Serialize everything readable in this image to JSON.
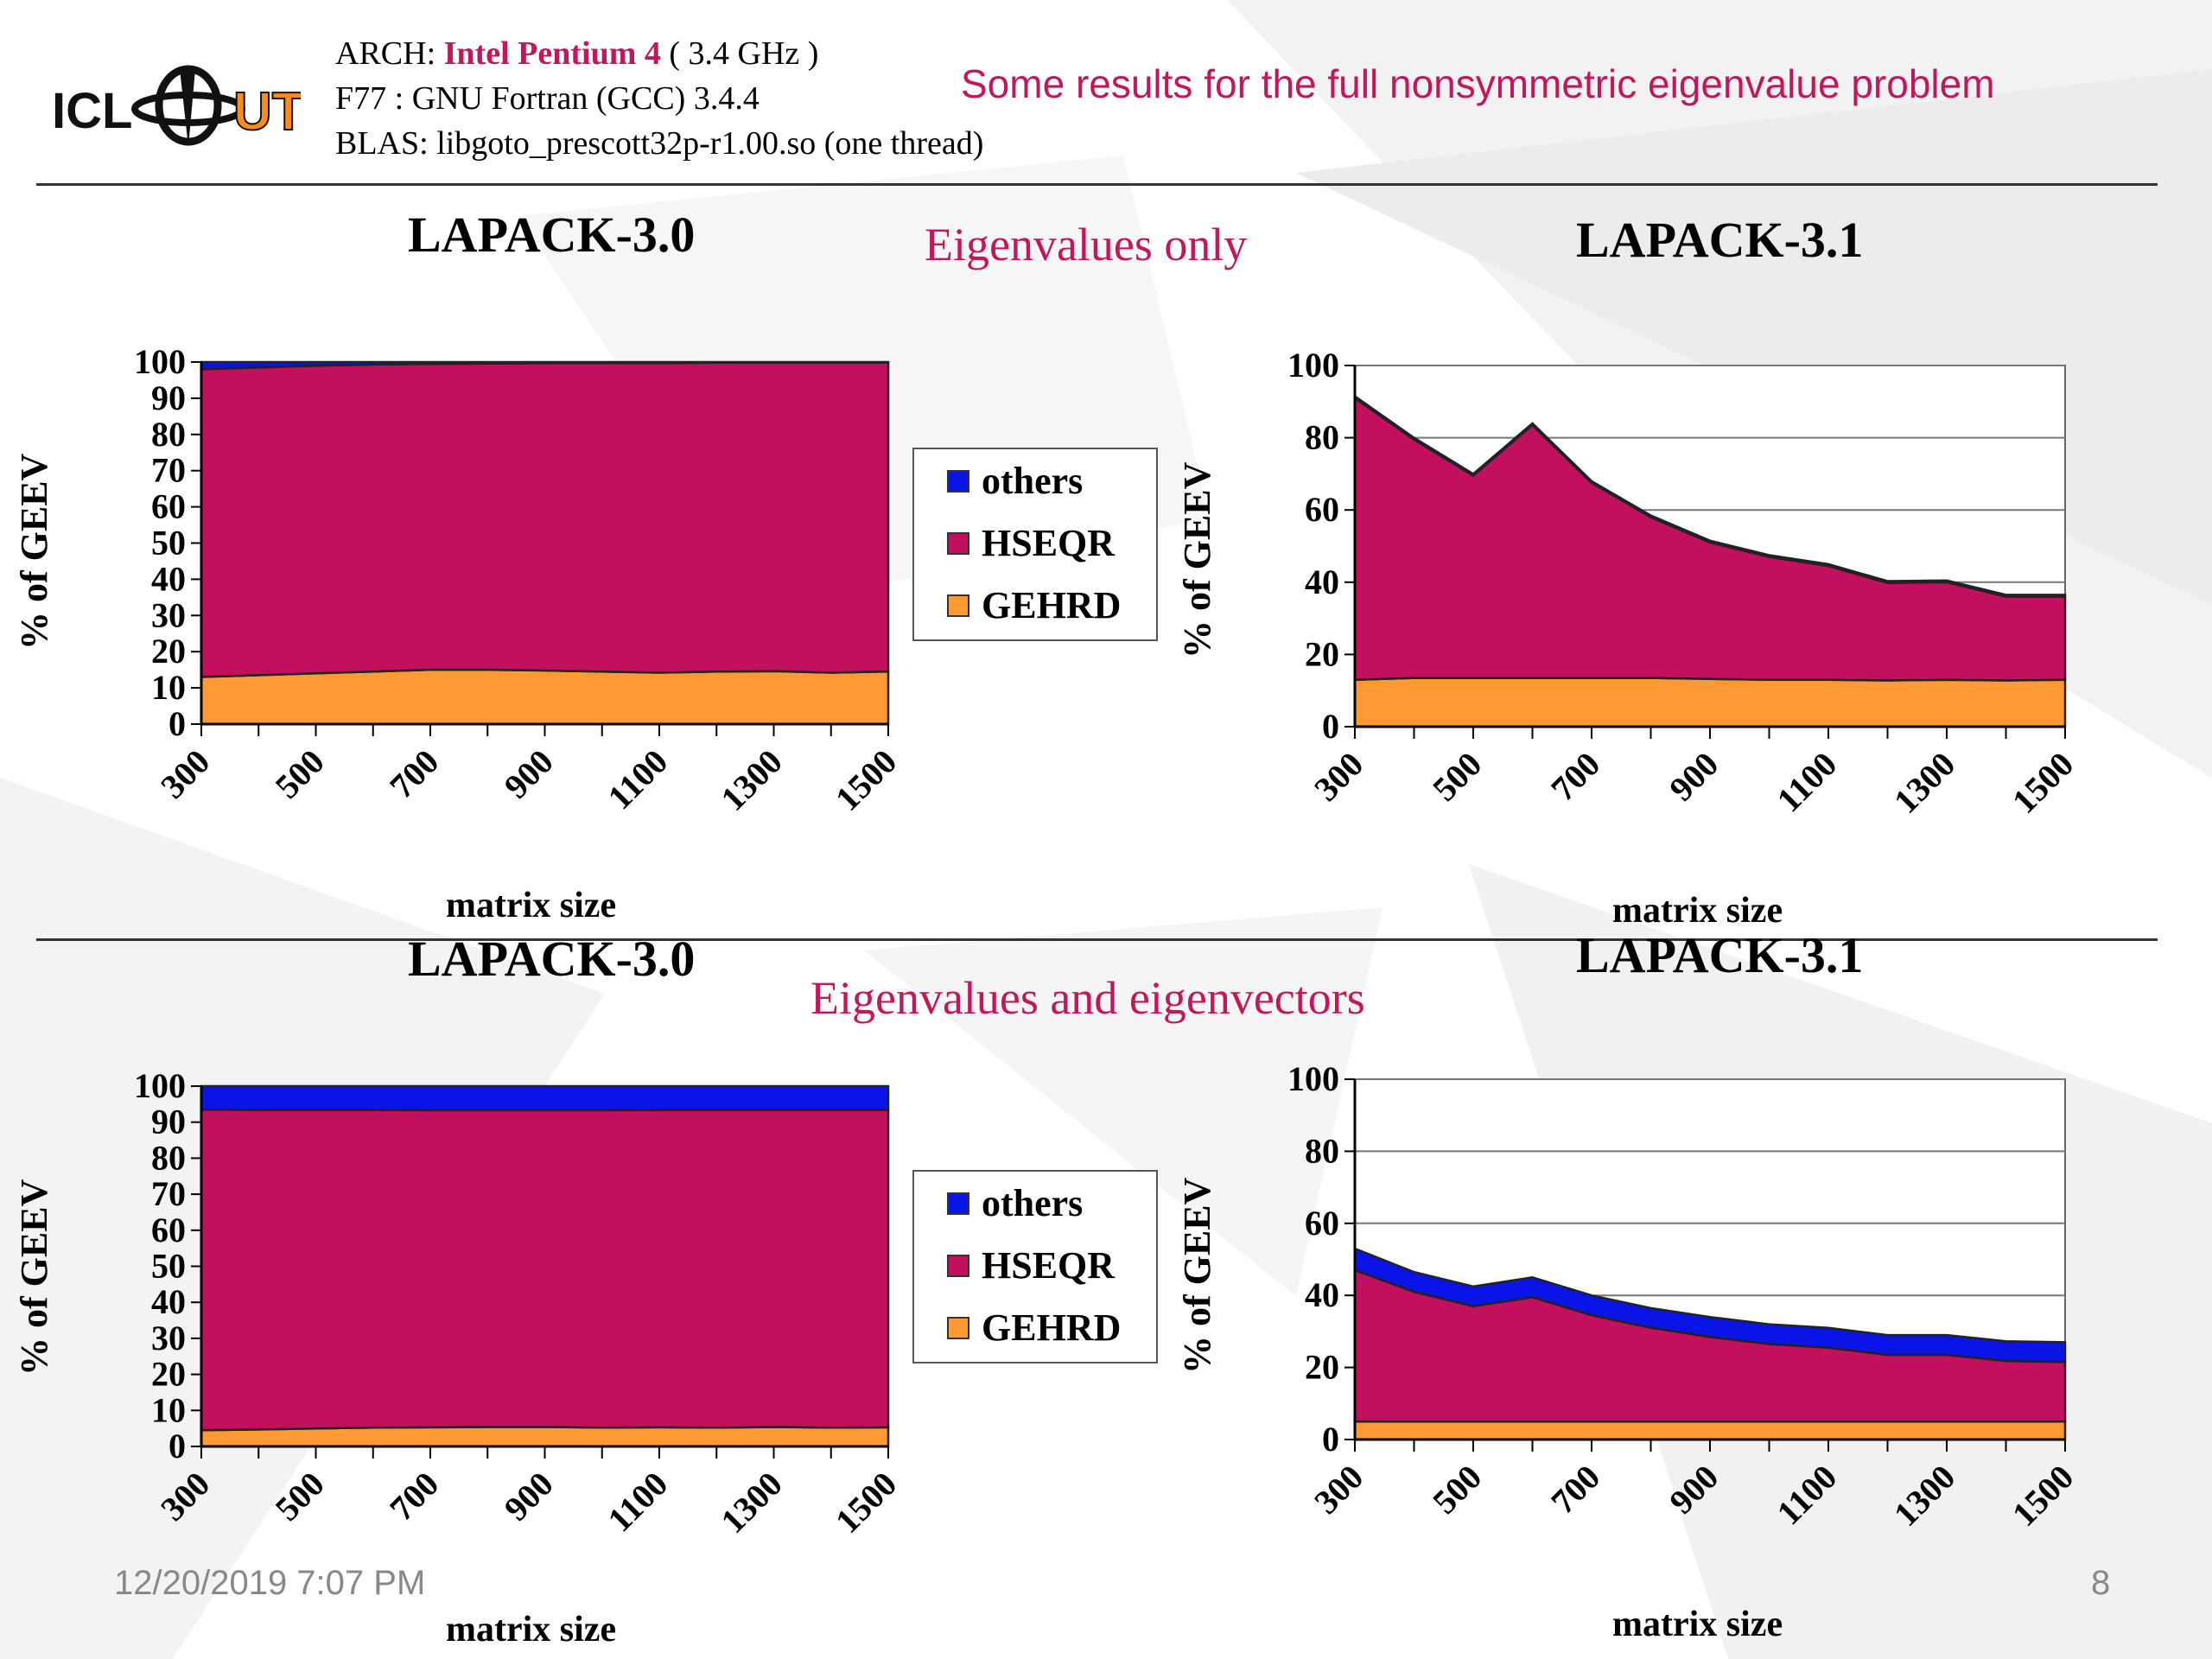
{
  "header": {
    "arch_prefix": "ARCH: ",
    "arch_cpu": "Intel Pentium 4",
    "arch_suffix": " ( 3.4 GHz )",
    "compiler": "F77 : GNU Fortran (GCC) 3.4.4",
    "blas": "BLAS: libgoto_prescott32p-r1.00.so (one thread)",
    "slide_title": "Some results for the full nonsymmetric eigenvalue problem",
    "logo_text": "ICL UT"
  },
  "sections": {
    "top": "Eigenvalues only",
    "bottom": "Eigenvalues and eigenvectors"
  },
  "legend": {
    "others": "others",
    "hseqr": "HSEQR",
    "gehrd": "GEHRD"
  },
  "colors": {
    "others": "#0a14e6",
    "hseqr": "#c2105e",
    "gehrd": "#ff9933",
    "accent": "#c2185b"
  },
  "footer": {
    "date": "12/20/2019 7:07 PM",
    "page": "8"
  },
  "chart_data": [
    {
      "id": "c1",
      "type": "area",
      "stacked": true,
      "title": "LAPACK-3.0",
      "xlabel": "matrix size",
      "ylabel": "% of GEEV",
      "x": [
        300,
        400,
        500,
        600,
        700,
        800,
        900,
        1000,
        1100,
        1200,
        1300,
        1400,
        1500
      ],
      "xticks": [
        "300",
        "500",
        "700",
        "900",
        "1100",
        "1300",
        "1500"
      ],
      "yticks": [
        0,
        10,
        20,
        30,
        40,
        50,
        60,
        70,
        80,
        90,
        100
      ],
      "ylim": [
        0,
        100
      ],
      "grid": false,
      "legend_position": "right",
      "series": [
        {
          "name": "GEHRD",
          "values": [
            13,
            13.5,
            14,
            14.5,
            15,
            15,
            14.8,
            14.5,
            14.2,
            14.5,
            14.6,
            14.2,
            14.5
          ]
        },
        {
          "name": "HSEQR",
          "values": [
            85,
            85,
            85,
            84.8,
            84.5,
            84.6,
            84.9,
            85.2,
            85.5,
            85.3,
            85.2,
            85.6,
            85.3
          ]
        },
        {
          "name": "others",
          "values": [
            2,
            1.5,
            1,
            0.7,
            0.5,
            0.4,
            0.3,
            0.3,
            0.3,
            0.2,
            0.2,
            0.2,
            0.2
          ]
        }
      ]
    },
    {
      "id": "c2",
      "type": "area",
      "stacked": true,
      "title": "LAPACK-3.1",
      "xlabel": "matrix size",
      "ylabel": "% of GEEV",
      "x": [
        300,
        400,
        500,
        600,
        700,
        800,
        900,
        1000,
        1100,
        1200,
        1300,
        1400,
        1500
      ],
      "xticks": [
        "300",
        "500",
        "700",
        "900",
        "1100",
        "1300",
        "1500"
      ],
      "yticks": [
        0,
        20,
        40,
        60,
        80,
        100
      ],
      "ylim": [
        0,
        100
      ],
      "grid": true,
      "legend_position": "none",
      "series": [
        {
          "name": "GEHRD",
          "values": [
            13,
            13.5,
            13.5,
            13.5,
            13.5,
            13.5,
            13.2,
            13,
            13,
            12.8,
            13,
            12.8,
            13
          ]
        },
        {
          "name": "HSEQR",
          "values": [
            78,
            66,
            56,
            70,
            54,
            44.5,
            37.8,
            34,
            31.5,
            27,
            27,
            23.2,
            23
          ]
        },
        {
          "name": "others",
          "values": [
            0.5,
            0.5,
            0.5,
            0.5,
            0.5,
            0.5,
            0.5,
            0.5,
            0.5,
            0.5,
            0.5,
            0.5,
            0.5
          ]
        }
      ]
    },
    {
      "id": "c3",
      "type": "area",
      "stacked": true,
      "title": "LAPACK-3.0",
      "xlabel": "matrix size",
      "ylabel": "% of GEEV",
      "x": [
        300,
        400,
        500,
        600,
        700,
        800,
        900,
        1000,
        1100,
        1200,
        1300,
        1400,
        1500
      ],
      "xticks": [
        "300",
        "500",
        "700",
        "900",
        "1100",
        "1300",
        "1500"
      ],
      "yticks": [
        0,
        10,
        20,
        30,
        40,
        50,
        60,
        70,
        80,
        90,
        100
      ],
      "ylim": [
        0,
        100
      ],
      "grid": false,
      "legend_position": "right",
      "series": [
        {
          "name": "GEHRD",
          "values": [
            4.5,
            4.7,
            5,
            5.2,
            5.3,
            5.4,
            5.4,
            5.2,
            5.3,
            5.2,
            5.4,
            5.2,
            5.3
          ]
        },
        {
          "name": "HSEQR",
          "values": [
            89,
            88.7,
            88.4,
            88.2,
            88,
            87.9,
            87.9,
            88.1,
            88.1,
            88.2,
            88,
            88.2,
            88.1
          ]
        },
        {
          "name": "others",
          "values": [
            6.5,
            6.6,
            6.6,
            6.6,
            6.7,
            6.7,
            6.7,
            6.7,
            6.6,
            6.6,
            6.6,
            6.6,
            6.6
          ]
        }
      ]
    },
    {
      "id": "c4",
      "type": "area",
      "stacked": true,
      "title": "LAPACK-3.1",
      "xlabel": "matrix size",
      "ylabel": "% of GEEV",
      "x": [
        300,
        400,
        500,
        600,
        700,
        800,
        900,
        1000,
        1100,
        1200,
        1300,
        1400,
        1500
      ],
      "xticks": [
        "300",
        "500",
        "700",
        "900",
        "1100",
        "1300",
        "1500"
      ],
      "yticks": [
        0,
        20,
        40,
        60,
        80,
        100
      ],
      "ylim": [
        0,
        100
      ],
      "grid": true,
      "legend_position": "none",
      "series": [
        {
          "name": "GEHRD",
          "values": [
            5,
            5,
            5,
            5,
            5,
            5,
            5,
            5,
            5,
            5,
            5,
            5,
            5
          ]
        },
        {
          "name": "HSEQR",
          "values": [
            42,
            36,
            32,
            34.5,
            29.5,
            26,
            23.5,
            21.5,
            20.5,
            18.5,
            18.5,
            16.8,
            16.5
          ]
        },
        {
          "name": "others",
          "values": [
            6,
            5.5,
            5.5,
            5.5,
            5.5,
            5.5,
            5.5,
            5.5,
            5.5,
            5.5,
            5.5,
            5.5,
            5.5
          ]
        }
      ]
    }
  ]
}
